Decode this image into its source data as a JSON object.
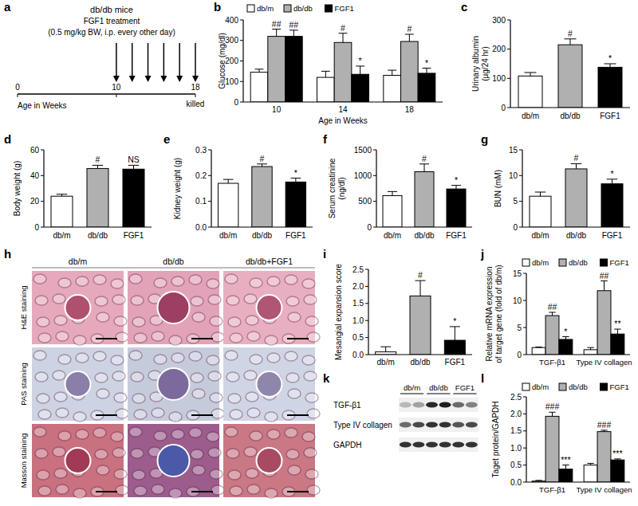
{
  "chart_data": [
    {
      "type": "timeline",
      "panel": "a",
      "title": "db/db mice",
      "subtitle": [
        "FGF1 treatment",
        "(0.5 mg/kg BW, i.p. every other day)"
      ],
      "xlabel": "Age in Weeks",
      "xlim": [
        0,
        18
      ],
      "xticks": [
        0,
        10,
        18
      ],
      "arrows": [
        10,
        11.6,
        13.2,
        14.8,
        16.4,
        18
      ],
      "annotations": [
        {
          "x": 18,
          "text": "killed"
        }
      ]
    },
    {
      "type": "bar",
      "panel": "b",
      "ylabel": "Glucose (mg/dl)",
      "xlabel": "Age in Weeks",
      "categories": [
        "10",
        "14",
        "18"
      ],
      "series": [
        {
          "name": "db/m",
          "color": "#ffffff",
          "values": [
            145,
            120,
            130
          ],
          "errors": [
            15,
            30,
            25
          ]
        },
        {
          "name": "db/db",
          "color": "#b0b0b0",
          "values": [
            320,
            290,
            295
          ],
          "errors": [
            35,
            45,
            35
          ],
          "annotations": [
            "##",
            "#",
            "#"
          ]
        },
        {
          "name": "FGF1",
          "color": "#000000",
          "values": [
            320,
            135,
            140
          ],
          "errors": [
            30,
            40,
            25
          ],
          "annotations": [
            "##",
            "*",
            "*"
          ]
        }
      ],
      "ylim": [
        0,
        400
      ],
      "yticks": [
        0,
        100,
        200,
        300,
        400
      ],
      "legend": "top"
    },
    {
      "type": "bar",
      "panel": "c",
      "ylabel": [
        "Urinary albumin",
        "(μg/24 hr)"
      ],
      "categories": [
        "db/m",
        "db/db",
        "FGF1"
      ],
      "colors": [
        "#ffffff",
        "#b0b0b0",
        "#000000"
      ],
      "values": [
        108,
        215,
        138
      ],
      "errors": [
        12,
        20,
        12
      ],
      "annotations": [
        null,
        "#",
        "*"
      ],
      "ylim": [
        0,
        300
      ],
      "yticks": [
        0,
        100,
        200,
        300
      ]
    },
    {
      "type": "bar",
      "panel": "d",
      "ylabel": "Body weight (g)",
      "categories": [
        "db/m",
        "db/db",
        "FGF1"
      ],
      "colors": [
        "#ffffff",
        "#b0b0b0",
        "#000000"
      ],
      "values": [
        24,
        45.5,
        45
      ],
      "errors": [
        1.5,
        2.5,
        3
      ],
      "annotations": [
        null,
        "#",
        "NS"
      ],
      "ylim": [
        0,
        60
      ],
      "yticks": [
        0,
        20,
        40,
        60
      ]
    },
    {
      "type": "bar",
      "panel": "e",
      "ylabel": "Kidney weight (g)",
      "categories": [
        "db/m",
        "db/db",
        "FGF1"
      ],
      "colors": [
        "#ffffff",
        "#b0b0b0",
        "#000000"
      ],
      "values": [
        0.17,
        0.235,
        0.175
      ],
      "errors": [
        0.015,
        0.01,
        0.015
      ],
      "annotations": [
        null,
        "#",
        "*"
      ],
      "ylim": [
        0,
        0.3
      ],
      "yticks": [
        {
          "value": 0,
          "label": "0.0"
        },
        0.1,
        0.2,
        0.3
      ]
    },
    {
      "type": "bar",
      "panel": "f",
      "ylabel": [
        "Serum creatinine",
        "(ng/dl)"
      ],
      "categories": [
        "db/m",
        "db/db",
        "FGF1"
      ],
      "colors": [
        "#ffffff",
        "#b0b0b0",
        "#000000"
      ],
      "values": [
        610,
        1075,
        740
      ],
      "errors": [
        80,
        150,
        70
      ],
      "annotations": [
        null,
        "#",
        "*"
      ],
      "ylim": [
        0,
        1500
      ],
      "yticks": [
        0,
        500,
        1000,
        1500
      ]
    },
    {
      "type": "bar",
      "panel": "g",
      "ylabel": "BUN (mM)",
      "categories": [
        "db/m",
        "db/db",
        "FGF1"
      ],
      "colors": [
        "#ffffff",
        "#b0b0b0",
        "#000000"
      ],
      "values": [
        6,
        11.3,
        8.4
      ],
      "errors": [
        0.8,
        1.0,
        0.9
      ],
      "annotations": [
        null,
        "#",
        "*"
      ],
      "ylim": [
        0,
        15
      ],
      "yticks": [
        0,
        5,
        10,
        15
      ]
    },
    {
      "type": "image_grid",
      "panel": "h",
      "columns": [
        "db/m",
        "db/db",
        "db/db+FGF1"
      ],
      "rows": [
        "H&E staining",
        "PAS staining",
        "Masson staining"
      ]
    },
    {
      "type": "bar",
      "panel": "i",
      "ylabel": "Mesangial expansion score",
      "categories": [
        "db/m",
        "db/db",
        "FGF1"
      ],
      "colors": [
        "#ffffff",
        "#b0b0b0",
        "#000000"
      ],
      "values": [
        0.08,
        1.72,
        0.42
      ],
      "errors": [
        0.15,
        0.45,
        0.4
      ],
      "annotations": [
        null,
        "#",
        "*"
      ],
      "ylim": [
        0,
        2.5
      ],
      "yticks": [
        {
          "value": 0,
          "label": "0.0"
        },
        0.5,
        {
          "value": 1,
          "label": "1.0"
        },
        1.5,
        {
          "value": 2,
          "label": "2.0"
        },
        2.5
      ]
    },
    {
      "type": "bar",
      "panel": "j",
      "ylabel": [
        "Relative mRNA expression",
        "of target gene (fold of db/m)"
      ],
      "categories": [
        "TGF-β1",
        "Type IV collagen"
      ],
      "series": [
        {
          "name": "db/m",
          "color": "#ffffff",
          "values": [
            1.3,
            0.9
          ],
          "errors": [
            0.1,
            0.4
          ]
        },
        {
          "name": "db/db",
          "color": "#b0b0b0",
          "values": [
            7.2,
            11.8
          ],
          "errors": [
            0.6,
            1.8
          ],
          "annotations": [
            "##",
            "##"
          ]
        },
        {
          "name": "FGF1",
          "color": "#000000",
          "values": [
            2.8,
            3.8
          ],
          "errors": [
            0.5,
            0.9
          ],
          "annotations": [
            "*",
            "**"
          ]
        }
      ],
      "ylim": [
        0,
        15
      ],
      "yticks": [
        0,
        5,
        10,
        15
      ],
      "legend": "top"
    },
    {
      "type": "blot",
      "panel": "k",
      "columns": [
        "db/m",
        "db/db",
        "FGF1"
      ],
      "rows": [
        "TGF-β1",
        "Type IV collagen",
        "GAPDH"
      ]
    },
    {
      "type": "bar",
      "panel": "l",
      "ylabel": "Taget protein/GAPDH",
      "categories": [
        "TGF-β1",
        "Type IV collagen"
      ],
      "series": [
        {
          "name": "db/m",
          "color": "#ffffff",
          "values": [
            0.03,
            0.5
          ],
          "errors": [
            0.02,
            0.05
          ]
        },
        {
          "name": "db/db",
          "color": "#b0b0b0",
          "values": [
            1.93,
            1.48
          ],
          "errors": [
            0.12,
            0.04
          ],
          "annotations": [
            "###",
            "###"
          ]
        },
        {
          "name": "FGF1",
          "color": "#000000",
          "values": [
            0.38,
            0.65
          ],
          "errors": [
            0.12,
            0.03
          ],
          "annotations": [
            "***",
            "***"
          ]
        }
      ],
      "ylim": [
        0,
        2.5
      ],
      "yticks": [
        {
          "value": 0,
          "label": "0.0"
        },
        0.5,
        {
          "value": 1,
          "label": "1.0"
        },
        1.5,
        {
          "value": 2,
          "label": "2.0"
        },
        2.5
      ],
      "legend": "top"
    }
  ]
}
